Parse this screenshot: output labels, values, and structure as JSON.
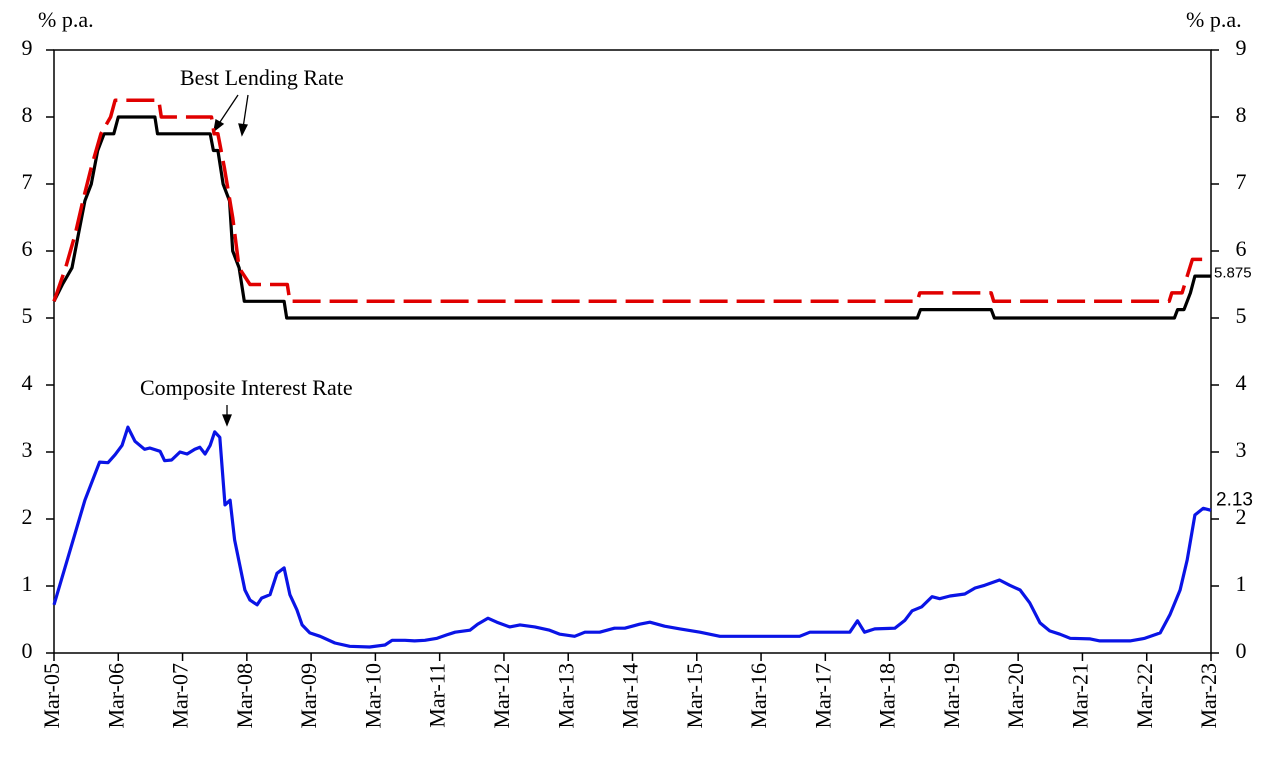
{
  "chart_data": {
    "type": "line",
    "y_label": "% p.a.",
    "y2_label": "% p.a.",
    "annotations": [
      "Best Lending Rate",
      "Composite Interest Rate"
    ],
    "xlim": [
      2005.17,
      2023.17
    ],
    "xticks": [
      {
        "value": 2005.17,
        "label": "Mar-05"
      },
      {
        "value": 2006.17,
        "label": "Mar-06"
      },
      {
        "value": 2007.17,
        "label": "Mar-07"
      },
      {
        "value": 2008.17,
        "label": "Mar-08"
      },
      {
        "value": 2009.17,
        "label": "Mar-09"
      },
      {
        "value": 2010.17,
        "label": "Mar-10"
      },
      {
        "value": 2011.17,
        "label": "Mar-11"
      },
      {
        "value": 2012.17,
        "label": "Mar-12"
      },
      {
        "value": 2013.17,
        "label": "Mar-13"
      },
      {
        "value": 2014.17,
        "label": "Mar-14"
      },
      {
        "value": 2015.17,
        "label": "Mar-15"
      },
      {
        "value": 2016.17,
        "label": "Mar-16"
      },
      {
        "value": 2017.17,
        "label": "Mar-17"
      },
      {
        "value": 2018.17,
        "label": "Mar-18"
      },
      {
        "value": 2019.17,
        "label": "Mar-19"
      },
      {
        "value": 2020.17,
        "label": "Mar-20"
      },
      {
        "value": 2021.17,
        "label": "Mar-21"
      },
      {
        "value": 2022.17,
        "label": "Mar-22"
      },
      {
        "value": 2023.17,
        "label": "Mar-23"
      }
    ],
    "ylim": [
      0,
      9
    ],
    "yticks": [
      0,
      1,
      2,
      3,
      4,
      5,
      6,
      7,
      8,
      9
    ],
    "y2lim": [
      0,
      9
    ],
    "y2ticks": [
      0,
      1,
      2,
      3,
      4,
      5,
      6,
      7,
      8,
      9
    ],
    "series": [
      {
        "color": "#000000",
        "dash": false,
        "x": [
          2005.17,
          2005.3,
          2005.45,
          2005.55,
          2005.65,
          2005.75,
          2005.85,
          2005.95,
          2006.1,
          2006.17,
          2006.74,
          2006.78,
          2007.6,
          2007.65,
          2007.72,
          2007.8,
          2007.9,
          2007.95,
          2008.05,
          2008.13,
          2008.75,
          2008.79,
          2018.6,
          2018.65,
          2019.75,
          2019.8,
          2022.6,
          2022.65,
          2022.75,
          2022.85,
          2022.92,
          2023.17
        ],
        "values": [
          5.25,
          5.5,
          5.75,
          6.25,
          6.75,
          7.0,
          7.5,
          7.75,
          7.75,
          8.0,
          8.0,
          7.75,
          7.75,
          7.5,
          7.5,
          7.0,
          6.75,
          6.0,
          5.75,
          5.25,
          5.25,
          5.0,
          5.0,
          5.125,
          5.125,
          5.0,
          5.0,
          5.125,
          5.125,
          5.375,
          5.625,
          5.625
        ]
      },
      {
        "color": "#e00000",
        "dash": true,
        "x": [
          2005.17,
          2005.35,
          2005.5,
          2005.62,
          2005.75,
          2005.9,
          2006.05,
          2006.12,
          2006.8,
          2006.84,
          2007.62,
          2007.66,
          2007.72,
          2007.82,
          2007.95,
          2008.05,
          2008.22,
          2008.8,
          2008.84,
          2018.6,
          2018.64,
          2019.75,
          2019.79,
          2022.52,
          2022.56,
          2022.72,
          2022.8,
          2022.88,
          2023.17
        ],
        "values": [
          5.25,
          5.75,
          6.25,
          6.75,
          7.25,
          7.75,
          8.0,
          8.25,
          8.25,
          8.0,
          8.0,
          7.75,
          7.75,
          7.25,
          6.5,
          5.75,
          5.5,
          5.5,
          5.25,
          5.25,
          5.375,
          5.375,
          5.25,
          5.25,
          5.375,
          5.375,
          5.625,
          5.875,
          5.875
        ]
      },
      {
        "color": "#0a14e6",
        "dash": false,
        "x": [
          2005.17,
          2005.65,
          2005.88,
          2006.01,
          2006.12,
          2006.23,
          2006.32,
          2006.43,
          2006.58,
          2006.66,
          2006.82,
          2006.89,
          2007.0,
          2007.13,
          2007.24,
          2007.36,
          2007.44,
          2007.52,
          2007.6,
          2007.67,
          2007.75,
          2007.83,
          2007.91,
          2007.98,
          2008.06,
          2008.14,
          2008.22,
          2008.33,
          2008.4,
          2008.53,
          2008.64,
          2008.75,
          2008.84,
          2008.95,
          2009.03,
          2009.15,
          2009.31,
          2009.54,
          2009.77,
          2010.08,
          2010.32,
          2010.43,
          2010.63,
          2010.78,
          2010.94,
          2011.13,
          2011.28,
          2011.41,
          2011.64,
          2011.76,
          2011.92,
          2012.06,
          2012.26,
          2012.42,
          2012.65,
          2012.88,
          2013.04,
          2013.27,
          2013.43,
          2013.66,
          2013.89,
          2014.05,
          2014.28,
          2014.44,
          2014.67,
          2014.91,
          2015.22,
          2015.53,
          2016.77,
          2016.93,
          2017.55,
          2017.67,
          2017.78,
          2017.94,
          2018.25,
          2018.41,
          2018.52,
          2018.67,
          2018.83,
          2018.95,
          2019.11,
          2019.34,
          2019.5,
          2019.65,
          2019.88,
          2020.04,
          2020.2,
          2020.35,
          2020.51,
          2020.66,
          2020.82,
          2020.98,
          2021.29,
          2021.44,
          2021.91,
          2022.14,
          2022.38,
          2022.53,
          2022.69,
          2022.8,
          2022.92,
          2023.05,
          2023.17
        ],
        "values": [
          0.72,
          2.28,
          2.85,
          2.84,
          2.96,
          3.1,
          3.37,
          3.16,
          3.04,
          3.06,
          3.01,
          2.87,
          2.88,
          3.0,
          2.97,
          3.04,
          3.07,
          2.97,
          3.1,
          3.3,
          3.22,
          2.21,
          2.28,
          1.69,
          1.31,
          0.94,
          0.79,
          0.72,
          0.82,
          0.87,
          1.19,
          1.27,
          0.87,
          0.64,
          0.42,
          0.3,
          0.25,
          0.15,
          0.1,
          0.09,
          0.12,
          0.19,
          0.19,
          0.18,
          0.19,
          0.22,
          0.27,
          0.31,
          0.34,
          0.43,
          0.52,
          0.46,
          0.39,
          0.42,
          0.39,
          0.34,
          0.28,
          0.25,
          0.31,
          0.31,
          0.37,
          0.37,
          0.43,
          0.46,
          0.4,
          0.36,
          0.31,
          0.25,
          0.25,
          0.31,
          0.31,
          0.48,
          0.31,
          0.36,
          0.37,
          0.49,
          0.63,
          0.69,
          0.84,
          0.81,
          0.85,
          0.88,
          0.97,
          1.01,
          1.09,
          1.01,
          0.94,
          0.75,
          0.45,
          0.33,
          0.28,
          0.22,
          0.21,
          0.18,
          0.18,
          0.22,
          0.3,
          0.57,
          0.94,
          1.39,
          2.06,
          2.16,
          2.13
        ]
      }
    ]
  }
}
